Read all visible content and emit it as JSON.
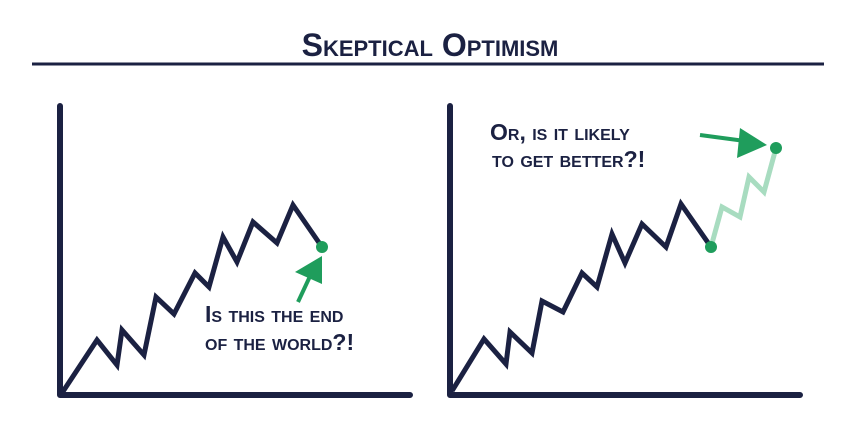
{
  "title": "Skeptical Optimism",
  "left_panel": {
    "caption_line1": "Is this the end",
    "caption_line2": "of the world?!"
  },
  "right_panel": {
    "caption_line1": "Or, is it likely",
    "caption_line2": "to get better?!"
  },
  "colors": {
    "ink": "#1b2142",
    "accent_green": "#1f9d5c",
    "projection_green": "#a8dcc0"
  }
}
